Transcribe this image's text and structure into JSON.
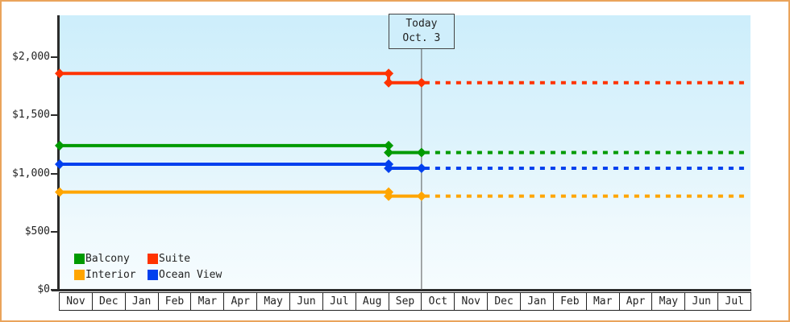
{
  "window": {
    "background": "#ffffff",
    "border_color": "#eaa45b"
  },
  "chart_data": {
    "type": "line",
    "title": "",
    "description": "Cabin price history: flat price lines per category with a price drop before today, dotted projection after today",
    "x_categories": [
      "Nov",
      "Dec",
      "Jan",
      "Feb",
      "Mar",
      "Apr",
      "May",
      "Jun",
      "Jul",
      "Aug",
      "Sep",
      "Oct",
      "Nov",
      "Dec",
      "Jan",
      "Feb",
      "Mar",
      "Apr",
      "May",
      "Jun",
      "Jul"
    ],
    "y_axis": {
      "tick_labels": [
        "$2,000",
        "$1,500",
        "$1,000",
        "$500",
        "$0"
      ],
      "tick_values": [
        2000,
        1500,
        1000,
        500,
        0
      ],
      "min": 0,
      "max": 2360,
      "grid": false
    },
    "today_marker": {
      "line1": "Today",
      "line2": "Oct. 3",
      "month_boundary_index": 11,
      "line_color": "#555555",
      "box_fill": "#cfeefb"
    },
    "price_change_month_boundary_index": 10,
    "series": [
      {
        "name": "Balcony",
        "color": "#009a00",
        "value_before_change": 1240,
        "value_after_change": 1180
      },
      {
        "name": "Suite",
        "color": "#ff3300",
        "value_before_change": 1860,
        "value_after_change": 1780
      },
      {
        "name": "Interior",
        "color": "#ffa500",
        "value_before_change": 840,
        "value_after_change": 805
      },
      {
        "name": "Ocean View",
        "color": "#0040ee",
        "value_before_change": 1080,
        "value_after_change": 1045
      }
    ],
    "legend": {
      "position": "bottom-left-inside-plot",
      "items": [
        "Balcony",
        "Suite",
        "Interior",
        "Ocean View"
      ]
    },
    "plot_background_top": "#cdeefb",
    "plot_background_bottom": "#f6fcfe"
  }
}
